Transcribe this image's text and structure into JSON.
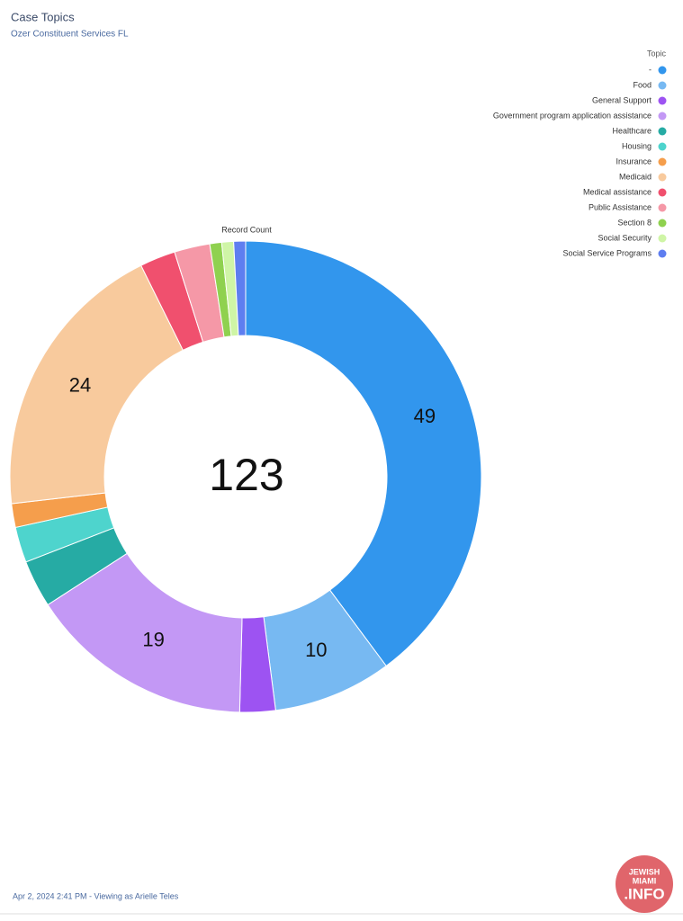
{
  "chart_data": {
    "type": "donut",
    "title": "Case Topics",
    "subtitle": "Ozer Constituent Services FL",
    "value_title": "Record Count",
    "legend_title": "Topic",
    "legend_position": "top-right",
    "total": 123,
    "categories": [
      "-",
      "Food",
      "General Support",
      "Government program application assistance",
      "Healthcare",
      "Housing",
      "Insurance",
      "Medicaid",
      "Medical assistance",
      "Public Assistance",
      "Section 8",
      "Social Security",
      "Social Service Programs"
    ],
    "values": [
      49,
      10,
      3,
      19,
      4,
      3,
      2,
      24,
      3,
      3,
      1,
      1,
      1
    ],
    "colors": [
      "#3296ed",
      "#77b9f2",
      "#9d53f2",
      "#c398f5",
      "#26aba4",
      "#4ed4cd",
      "#f59e4c",
      "#f8ca9d",
      "#f0506e",
      "#f598a7",
      "#8fd14f",
      "#cff5a6",
      "#5e7ef0"
    ]
  },
  "footer": "Apr 2, 2024 2:41 PM - Viewing as Arielle Teles",
  "watermark": {
    "line1": "JEWISH",
    "line2": "MIAMI",
    "line3": ".INFO"
  }
}
